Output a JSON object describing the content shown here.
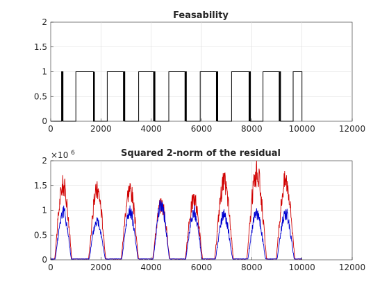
{
  "chart_data": [
    {
      "type": "line",
      "title": "Feasability",
      "xlim": [
        0,
        12000
      ],
      "ylim": [
        0,
        2
      ],
      "xticks": [
        0,
        2000,
        4000,
        6000,
        8000,
        10000,
        12000
      ],
      "yticks": [
        0,
        0.5,
        1,
        1.5,
        2
      ],
      "xtick_labels": [
        "0",
        "2000",
        "4000",
        "6000",
        "8000",
        "10000",
        "12000"
      ],
      "ytick_labels": [
        "0",
        "0.5",
        "1",
        "1.5",
        "2"
      ],
      "grid": true,
      "series": [
        {
          "color": "#000000",
          "style": "binary-pulse",
          "pulses": [
            {
              "start": 430,
              "end": 490
            },
            {
              "start": 1000,
              "end": 1700
            },
            {
              "start": 2250,
              "end": 2950
            },
            {
              "start": 3500,
              "end": 4150
            },
            {
              "start": 4700,
              "end": 5400
            },
            {
              "start": 5950,
              "end": 6650
            },
            {
              "start": 7200,
              "end": 7950
            },
            {
              "start": 8450,
              "end": 9150
            },
            {
              "start": 9650,
              "end": 10000
            }
          ],
          "dense_bands": [
            {
              "start": 430,
              "end": 490
            },
            {
              "start": 1700,
              "end": 1730
            },
            {
              "start": 2880,
              "end": 2950
            },
            {
              "start": 4080,
              "end": 4150
            },
            {
              "start": 5330,
              "end": 5400
            },
            {
              "start": 6580,
              "end": 6650
            },
            {
              "start": 7880,
              "end": 7950
            },
            {
              "start": 9080,
              "end": 9150
            }
          ],
          "x_end": 10000
        }
      ]
    },
    {
      "type": "line",
      "title": "Squared 2-norm of the residual",
      "xlim": [
        0,
        12000
      ],
      "ylim": [
        0,
        2000000
      ],
      "xticks": [
        0,
        2000,
        4000,
        6000,
        8000,
        10000,
        12000
      ],
      "yticks": [
        0,
        500000,
        1000000,
        1500000,
        2000000
      ],
      "xtick_labels": [
        "0",
        "2000",
        "4000",
        "6000",
        "8000",
        "10000",
        "12000"
      ],
      "ytick_labels": [
        "0",
        "0.5",
        "1",
        "1.5",
        "2"
      ],
      "y_exponent_label": "×10",
      "y_exponent_power": "6",
      "grid": true,
      "series": [
        {
          "color": "#d00000",
          "peaks": [
            {
              "x": 500,
              "height": 1550000,
              "width": 350
            },
            {
              "x": 1850,
              "height": 1450000,
              "width": 350
            },
            {
              "x": 3150,
              "height": 1480000,
              "width": 350
            },
            {
              "x": 4400,
              "height": 1150000,
              "width": 350
            },
            {
              "x": 5700,
              "height": 1250000,
              "width": 350
            },
            {
              "x": 6900,
              "height": 1600000,
              "width": 380
            },
            {
              "x": 8200,
              "height": 1800000,
              "width": 400
            },
            {
              "x": 9350,
              "height": 1650000,
              "width": 380
            }
          ]
        },
        {
          "color": "#0000d0",
          "peaks": [
            {
              "x": 500,
              "height": 1000000,
              "width": 330
            },
            {
              "x": 1850,
              "height": 820000,
              "width": 330
            },
            {
              "x": 3150,
              "height": 1000000,
              "width": 330
            },
            {
              "x": 4400,
              "height": 1150000,
              "width": 330
            },
            {
              "x": 5700,
              "height": 1000000,
              "width": 330
            },
            {
              "x": 6900,
              "height": 920000,
              "width": 350
            },
            {
              "x": 8200,
              "height": 960000,
              "width": 360
            },
            {
              "x": 9350,
              "height": 960000,
              "width": 350
            }
          ]
        }
      ],
      "x_end": 10000
    }
  ]
}
